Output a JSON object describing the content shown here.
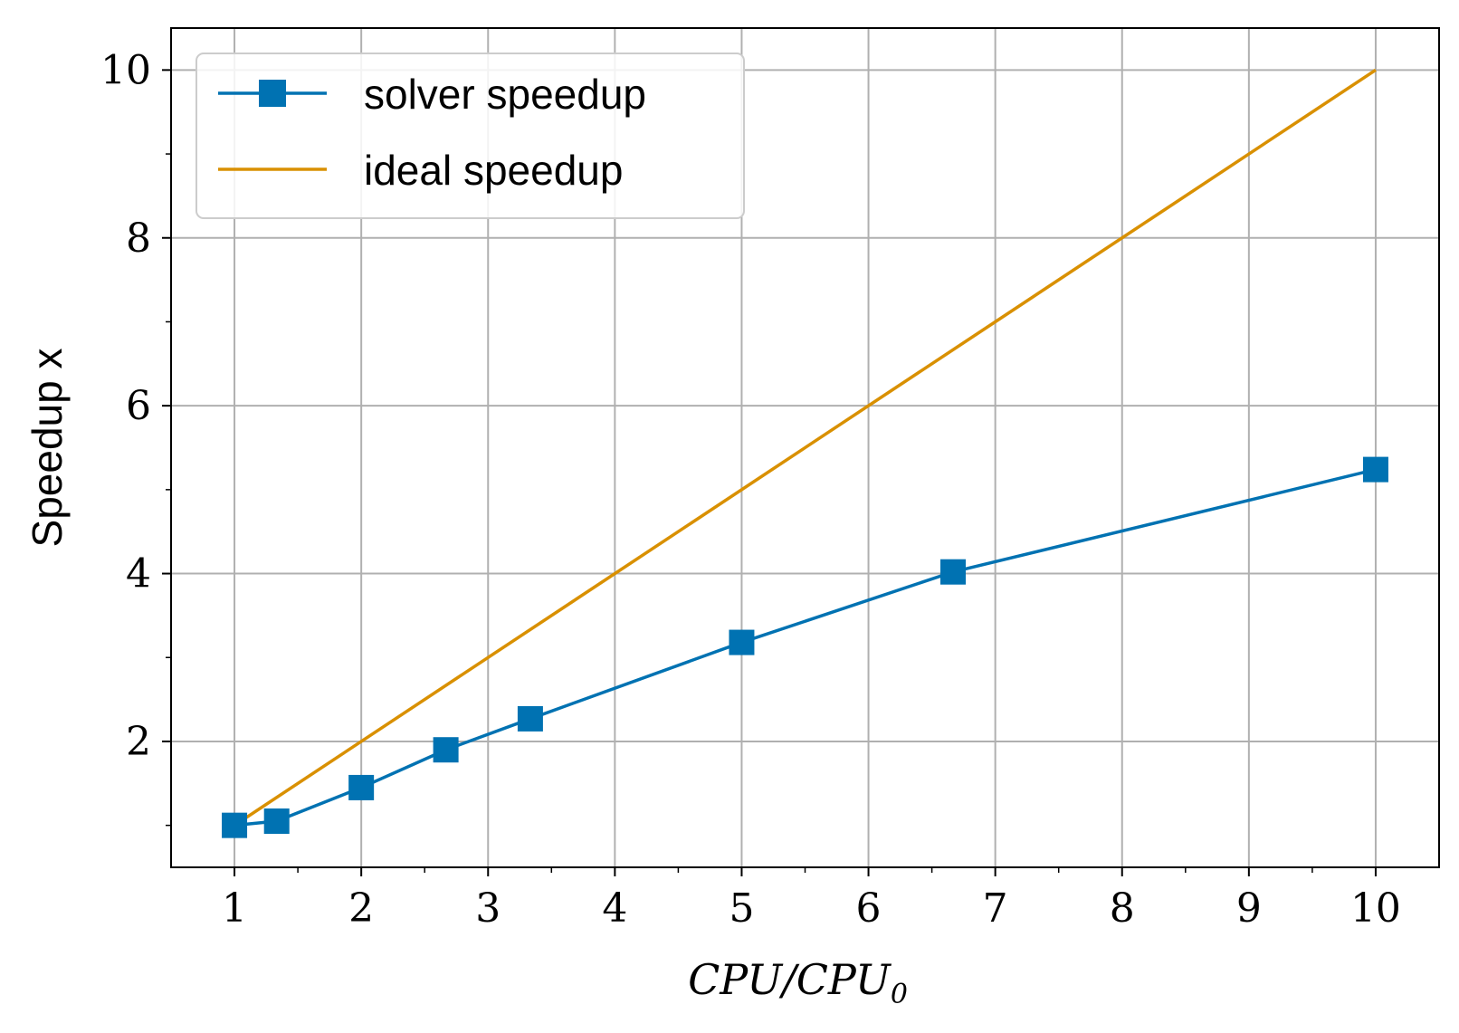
{
  "chart_data": {
    "type": "line",
    "xlabel": "CPU/CPU",
    "xlabel_subscript": "0",
    "ylabel": "Speedup x",
    "xlim": [
      0.5,
      10.5
    ],
    "ylim": [
      0.5,
      10.5
    ],
    "xticks": [
      1,
      2,
      3,
      4,
      5,
      6,
      7,
      8,
      9,
      10
    ],
    "xtick_labels": [
      "1",
      "2",
      "3",
      "4",
      "5",
      "6",
      "7",
      "8",
      "9",
      "10"
    ],
    "yticks": [
      2,
      4,
      6,
      8,
      10
    ],
    "ytick_labels": [
      "2",
      "4",
      "6",
      "8",
      "10"
    ],
    "grid": true,
    "legend_position": "top-left",
    "series": [
      {
        "name": "solver speedup",
        "color": "#0072B2",
        "marker": "square",
        "x": [
          1,
          1.333,
          2,
          2.667,
          3.333,
          5,
          6.667,
          10
        ],
        "y": [
          1.0,
          1.05,
          1.45,
          1.9,
          2.27,
          3.18,
          4.02,
          5.24
        ]
      },
      {
        "name": "ideal speedup",
        "color": "#D99000",
        "marker": "none",
        "x": [
          1,
          10
        ],
        "y": [
          1,
          10
        ]
      }
    ]
  }
}
